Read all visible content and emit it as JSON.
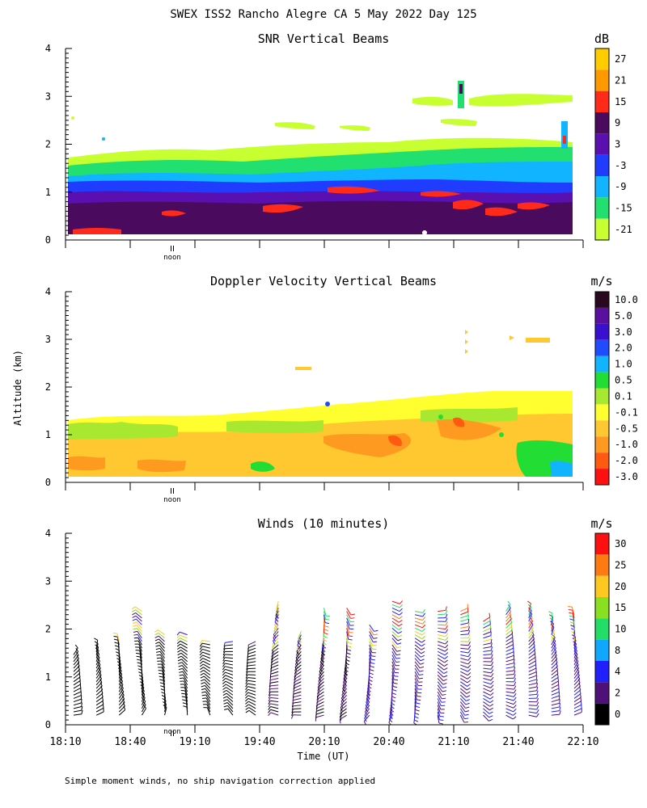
{
  "title": "SWEX ISS2 Rancho Alegre CA   5 May 2022 Day 125",
  "ylabel": "Altitude (km)",
  "xlabel": "Time (UT)",
  "noon_label": "noon",
  "footnote": "Simple moment winds, no ship navigation correction applied",
  "x_ticks": [
    "18:10",
    "18:40",
    "19:10",
    "19:40",
    "20:10",
    "20:40",
    "21:10",
    "21:40",
    "22:10"
  ],
  "y_ticks": [
    "0",
    "1",
    "2",
    "3",
    "4"
  ],
  "colors": {
    "snr_red": "#ff2a1a",
    "bg": "#ffffff"
  },
  "chart_data": [
    {
      "type": "heatmap",
      "title": "SNR Vertical Beams",
      "units": "dB",
      "xlim": [
        "18:10",
        "22:10"
      ],
      "ylim": [
        0,
        4
      ],
      "legend": {
        "labels": [
          "27",
          "21",
          "15",
          "9",
          "3",
          "-3",
          "-9",
          "-15",
          "-21"
        ],
        "colors": [
          "#ffcc00",
          "#ff9900",
          "#ff2a1a",
          "#4a0a5e",
          "#5a0fb0",
          "#1f3cff",
          "#10b4ff",
          "#22e070",
          "#c8ff30"
        ]
      },
      "layers": [
        {
          "band": "0.15-0.9 km",
          "color_index": 3
        },
        {
          "band": "0.3-0.5 km",
          "color_index": 2
        },
        {
          "band": "0.9-1.3 km",
          "color_index": 5
        },
        {
          "band": "1.3-1.5 km",
          "color_index": 6
        },
        {
          "band": "1.5-1.8 km",
          "color_index": 7
        }
      ]
    },
    {
      "type": "heatmap",
      "title": "Doppler Velocity Vertical Beams",
      "units": "m/s",
      "xlim": [
        "18:10",
        "22:10"
      ],
      "ylim": [
        0,
        4
      ],
      "legend": {
        "labels": [
          "10.0",
          "5.0",
          "3.0",
          "2.0",
          "1.0",
          "0.5",
          "0.1",
          "-0.1",
          "-0.5",
          "-1.0",
          "-2.0",
          "-3.0"
        ],
        "colors": [
          "#2a0820",
          "#5a0fa0",
          "#3a10d0",
          "#1f4cff",
          "#10b4ff",
          "#22dd33",
          "#a8e830",
          "#ffff30",
          "#ffc830",
          "#ff9a20",
          "#ff5a10",
          "#ff1010"
        ]
      }
    },
    {
      "type": "barbs",
      "title": "Winds (10 minutes)",
      "units": "m/s",
      "xlim": [
        "18:10",
        "22:10"
      ],
      "ylim": [
        0,
        4
      ],
      "legend": {
        "labels": [
          "30",
          "25",
          "20",
          "15",
          "10",
          "8",
          "4",
          "2",
          "0"
        ],
        "colors": [
          "#ff1010",
          "#ff7a10",
          "#ffc820",
          "#88e020",
          "#22dd66",
          "#10a8ff",
          "#2020ff",
          "#50107a",
          "#000000"
        ]
      },
      "time_steps": 23,
      "max_height_km": [
        1.5,
        1.6,
        1.8,
        2.4,
        1.9,
        1.9,
        1.8,
        1.8,
        1.8,
        2.6,
        2.0,
        2.5,
        2.5,
        2.1,
        2.6,
        2.4,
        2.4,
        2.4,
        2.2,
        2.4,
        2.4,
        2.2,
        2.3
      ]
    }
  ]
}
